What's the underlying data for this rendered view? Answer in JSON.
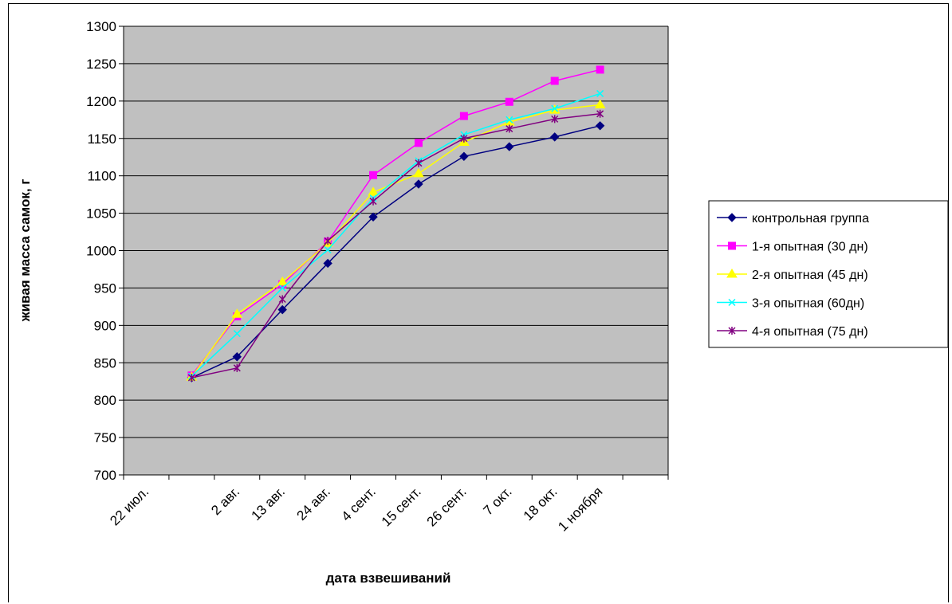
{
  "chart_data": {
    "type": "line",
    "xlabel": "дата взвешиваний",
    "ylabel": "живая масса самок, г",
    "ylim": [
      700,
      1300
    ],
    "y_ticks": [
      700,
      750,
      800,
      850,
      900,
      950,
      1000,
      1050,
      1100,
      1150,
      1200,
      1250,
      1300
    ],
    "x_tick_labels": [
      "22 июл.",
      "2 авг.",
      "13 авг.",
      "24 авг.",
      "4 сент.",
      "15 сент.",
      "26 сент.",
      "7 окт.",
      "18 окт.",
      "1 ноября"
    ],
    "x_positions": [
      1,
      2,
      3,
      4,
      5,
      6,
      7,
      8,
      9,
      10
    ],
    "grid": true,
    "plot_background": "#c0c0c0",
    "legend_position": "right",
    "series": [
      {
        "name": "контрольная группа",
        "color": "#000080",
        "marker": "diamond",
        "values": [
          830,
          858,
          921,
          983,
          1045,
          1089,
          1126,
          1139,
          1152,
          1167
        ]
      },
      {
        "name": "1-я опытная (30 дн)",
        "color": "#ff00ff",
        "marker": "square",
        "values": [
          833,
          912,
          955,
          1012,
          1101,
          1144,
          1180,
          1199,
          1227,
          1242
        ]
      },
      {
        "name": "2-я опытная (45 дн)",
        "color": "#ffff00",
        "marker": "triangle",
        "values": [
          831,
          915,
          958,
          1010,
          1078,
          1103,
          1145,
          1172,
          1188,
          1195
        ]
      },
      {
        "name": "3-я опытная (60дн)",
        "color": "#00ffff",
        "marker": "x",
        "values": [
          832,
          889,
          950,
          1001,
          1070,
          1120,
          1155,
          1175,
          1190,
          1210
        ]
      },
      {
        "name": "4-я опытная (75 дн)",
        "color": "#800080",
        "marker": "star",
        "values": [
          830,
          843,
          935,
          1013,
          1066,
          1117,
          1150,
          1163,
          1176,
          1183
        ]
      }
    ]
  }
}
